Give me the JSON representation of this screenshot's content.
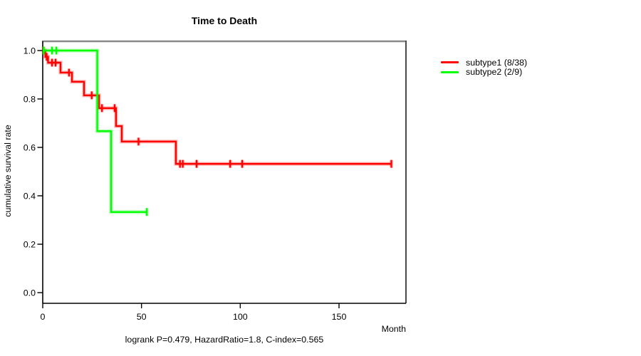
{
  "chart_data": {
    "type": "line",
    "variant": "kaplan_meier_step",
    "title": "Time to Death",
    "xlabel": "Month",
    "ylabel": "cumulative survival rate",
    "annotation": "logrank P=0.479, HazardRatio=1.8, C-index=0.565",
    "x_ticks": [
      0,
      50,
      100,
      150
    ],
    "y_ticks": [
      0.0,
      0.2,
      0.4,
      0.6,
      0.8,
      1.0
    ],
    "xlim": [
      0,
      184
    ],
    "ylim": [
      0,
      1
    ],
    "grid": false,
    "legend_position": "right-outside",
    "axis_color": "#000000",
    "frame_top_color": "#8a8a8a",
    "frame_right_color": "#4a4a4a",
    "series": [
      {
        "name": "subtype1",
        "label": "subtype1 (8/38)",
        "color": "#ff0000",
        "events": 8,
        "n": 38,
        "steps": [
          [
            0,
            1.0
          ],
          [
            1.3,
            0.974
          ],
          [
            2.7,
            0.95
          ],
          [
            9.0,
            0.909
          ],
          [
            14.8,
            0.871
          ],
          [
            20.9,
            0.815
          ],
          [
            28.5,
            0.762
          ],
          [
            37.1,
            0.688
          ],
          [
            40.0,
            0.624
          ],
          [
            67.4,
            0.532
          ]
        ],
        "end_time": 176.5,
        "censor_marks": [
          [
            0.35,
            1.0
          ],
          [
            2.0,
            0.974
          ],
          [
            4.7,
            0.95
          ],
          [
            6.5,
            0.95
          ],
          [
            13.3,
            0.909
          ],
          [
            24.8,
            0.815
          ],
          [
            30.0,
            0.762
          ],
          [
            36.4,
            0.762
          ],
          [
            48.5,
            0.624
          ],
          [
            69.5,
            0.532
          ],
          [
            70.9,
            0.532
          ],
          [
            77.9,
            0.532
          ],
          [
            94.9,
            0.532
          ],
          [
            101.0,
            0.532
          ],
          [
            176.5,
            0.532
          ]
        ]
      },
      {
        "name": "subtype2",
        "label": "subtype2 (2/9)",
        "color": "#00ff00",
        "events": 2,
        "n": 9,
        "steps": [
          [
            0,
            1.0
          ],
          [
            27.6,
            0.667
          ],
          [
            34.6,
            0.333
          ]
        ],
        "end_time": 52.7,
        "censor_marks": [
          [
            0.5,
            1.0
          ],
          [
            4.7,
            1.0
          ],
          [
            6.9,
            1.0
          ],
          [
            52.7,
            0.333
          ]
        ]
      }
    ]
  }
}
